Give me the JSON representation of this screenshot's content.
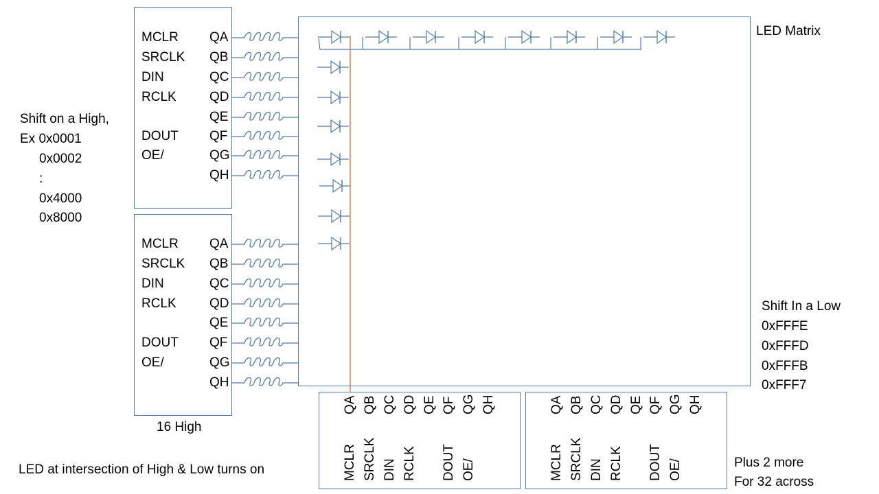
{
  "shift_register": {
    "left_pins": [
      "MCLR",
      "SRCLK",
      "DIN",
      "RCLK",
      "",
      "DOUT",
      "OE/",
      ""
    ],
    "output_pins": [
      "QA",
      "QB",
      "QC",
      "QD",
      "QE",
      "QF",
      "QG",
      "QH"
    ]
  },
  "matrix": {
    "title": "LED Matrix"
  },
  "notes": {
    "shift_high": [
      "Shift on a High,",
      "Ex 0x0001",
      "0x0002",
      ":",
      "0x4000",
      "0x8000"
    ],
    "shift_low": [
      "Shift In a Low",
      "0xFFFE",
      "0xFFFD",
      "0xFFFB",
      "0xFFF7"
    ],
    "sixteen_high": "16 High",
    "intersection": "LED at intersection of High & Low turns on",
    "plus_more": [
      "Plus 2 more",
      "For 32 across"
    ]
  },
  "colors": {
    "wire": "#4f7bab",
    "highlight": "#e07b39"
  }
}
